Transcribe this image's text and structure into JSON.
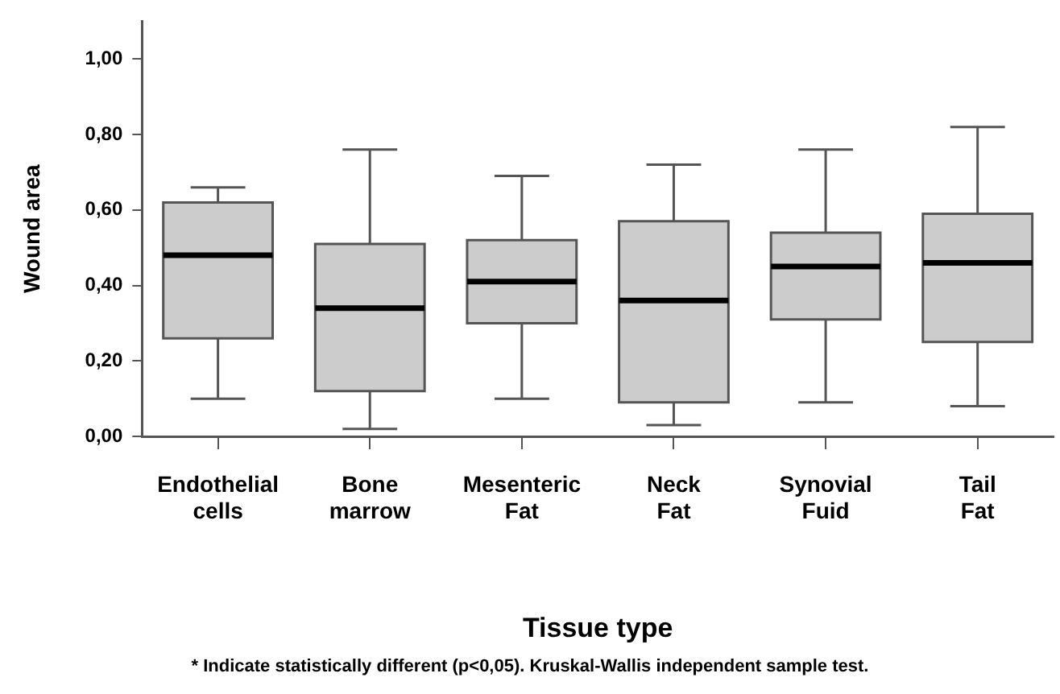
{
  "chart_data": {
    "type": "box",
    "xlabel": "Tissue type",
    "ylabel": "Wound area",
    "annotations": [
      "* Indicate statistically different (p<0,05). Kruskal-Wallis independent sample test."
    ],
    "categories": [
      "Endothelial cells",
      "Bone marrow",
      "Mesenteric Fat",
      "Neck Fat",
      "Synovial Fuid",
      "Tail Fat"
    ],
    "color": "#cccccc",
    "boxes": [
      {
        "low": 0.1,
        "q1": 0.26,
        "median": 0.48,
        "q3": 0.62,
        "high": 0.66
      },
      {
        "low": 0.02,
        "q1": 0.12,
        "median": 0.34,
        "q3": 0.51,
        "high": 0.76
      },
      {
        "low": 0.1,
        "q1": 0.3,
        "median": 0.41,
        "q3": 0.52,
        "high": 0.69
      },
      {
        "low": 0.03,
        "q1": 0.09,
        "median": 0.36,
        "q3": 0.57,
        "high": 0.72
      },
      {
        "low": 0.09,
        "q1": 0.31,
        "median": 0.45,
        "q3": 0.54,
        "high": 0.76
      },
      {
        "low": 0.08,
        "q1": 0.25,
        "median": 0.46,
        "q3": 0.59,
        "high": 0.82
      }
    ],
    "ylim": [
      0,
      1.1
    ],
    "yticks": [
      {
        "value": 0,
        "label": "0,00"
      },
      {
        "value": 0.2,
        "label": "0,20"
      },
      {
        "value": 0.4,
        "label": "0,40"
      },
      {
        "value": 0.6,
        "label": "0,60"
      },
      {
        "value": 0.8,
        "label": "0,80"
      },
      {
        "value": 1,
        "label": "1,00"
      }
    ],
    "grid": false
  }
}
